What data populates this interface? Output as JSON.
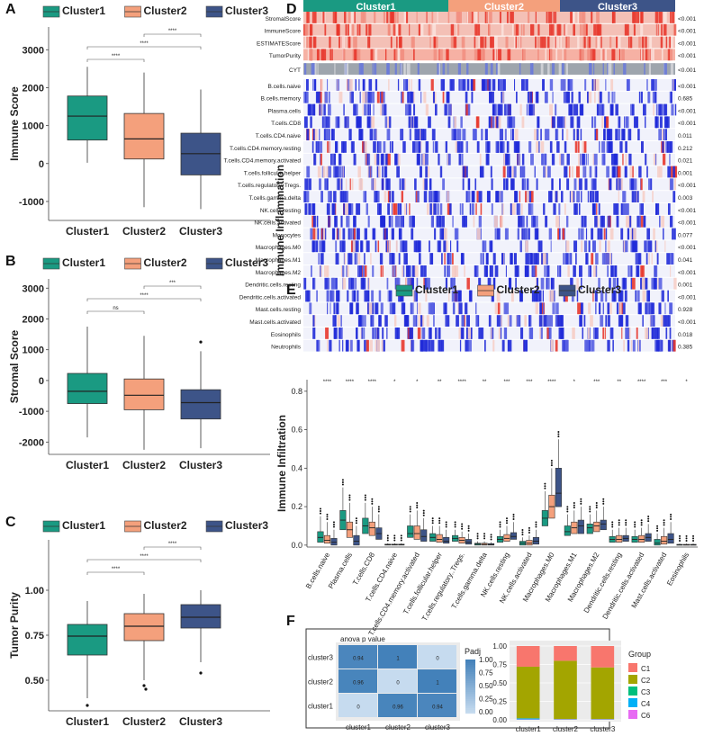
{
  "colors": {
    "c1": "#1a9a82",
    "c2": "#f4a07c",
    "c3": "#3d5488",
    "heatHigh": "#e8382e",
    "heatLow": "#1f2ad8",
    "cyt": "#9ea5ad"
  },
  "panels": {
    "A": "A",
    "B": "B",
    "C": "C",
    "D": "D",
    "E": "E",
    "F": "F"
  },
  "chart_data": [
    {
      "id": "A",
      "type": "box",
      "ylabel": "Immune Score",
      "ylim": [
        -1500,
        3600
      ],
      "yticks": [
        -1000,
        0,
        1000,
        2000,
        3000
      ],
      "legend": [
        "Cluster1",
        "Cluster2",
        "Cluster3"
      ],
      "categories": [
        "Cluster1",
        "Cluster2",
        "Cluster3"
      ],
      "boxes": [
        {
          "q1": 620,
          "med": 1250,
          "q3": 1780,
          "lo": 20,
          "hi": 2550,
          "out": []
        },
        {
          "q1": 120,
          "med": 650,
          "q3": 1320,
          "lo": -1150,
          "hi": 2400,
          "out": []
        },
        {
          "q1": -300,
          "med": 260,
          "q3": 800,
          "lo": -1200,
          "hi": 1950,
          "out": []
        }
      ],
      "comparisons": [
        {
          "from": 1,
          "to": 2,
          "label": "****"
        },
        {
          "from": 1,
          "to": 3,
          "label": "****"
        },
        {
          "from": 2,
          "to": 3,
          "label": "****"
        }
      ]
    },
    {
      "id": "B",
      "type": "box",
      "ylabel": "Stromal Score",
      "ylim": [
        -2400,
        3300
      ],
      "yticks": [
        -2000,
        -1000,
        0,
        1000,
        2000,
        3000
      ],
      "legend": [
        "Cluster1",
        "Cluster2",
        "Cluster3"
      ],
      "categories": [
        "Cluster1",
        "Cluster2",
        "Cluster3"
      ],
      "boxes": [
        {
          "q1": -750,
          "med": -350,
          "q3": 230,
          "lo": -1850,
          "hi": 1750,
          "out": []
        },
        {
          "q1": -950,
          "med": -480,
          "q3": 50,
          "lo": -2250,
          "hi": 1450,
          "out": []
        },
        {
          "q1": -1250,
          "med": -720,
          "q3": -300,
          "lo": -2200,
          "hi": 950,
          "out": [
            1250
          ]
        }
      ],
      "comparisons": [
        {
          "from": 1,
          "to": 2,
          "label": "ns"
        },
        {
          "from": 1,
          "to": 3,
          "label": "****"
        },
        {
          "from": 2,
          "to": 3,
          "label": "***"
        }
      ]
    },
    {
      "id": "C",
      "type": "box",
      "ylabel": "Tumor Purity",
      "ylim": [
        0.33,
        1.28
      ],
      "yticks": [
        0.5,
        0.75,
        1.0
      ],
      "yticklabels": [
        "0.50",
        "0.75",
        "1.00"
      ],
      "legend": [
        "Cluster1",
        "Cluster2",
        "Cluster3"
      ],
      "categories": [
        "Cluster1",
        "Cluster2",
        "Cluster3"
      ],
      "boxes": [
        {
          "q1": 0.64,
          "med": 0.745,
          "q3": 0.81,
          "lo": 0.4,
          "hi": 0.94,
          "out": [
            0.36
          ]
        },
        {
          "q1": 0.72,
          "med": 0.8,
          "q3": 0.87,
          "lo": 0.5,
          "hi": 0.98,
          "out": [
            0.47,
            0.45
          ]
        },
        {
          "q1": 0.79,
          "med": 0.85,
          "q3": 0.92,
          "lo": 0.6,
          "hi": 1.0,
          "out": [
            0.54
          ]
        }
      ],
      "comparisons": [
        {
          "from": 1,
          "to": 2,
          "label": "****"
        },
        {
          "from": 1,
          "to": 3,
          "label": "****"
        },
        {
          "from": 2,
          "to": 3,
          "label": "****"
        }
      ]
    },
    {
      "id": "D",
      "type": "heatmap",
      "ylabel": "Immune Inflammation",
      "clusters": [
        "Cluster1",
        "Cluster2",
        "Cluster3"
      ],
      "rows": [
        "StromalScore",
        "ImmuneScore",
        "ESTIMATEScore",
        "TumorPurity",
        "CYT",
        "B.cells.naive",
        "B.cells.memory",
        "Plasma.cells",
        "T.cells.CD8",
        "T.cells.CD4.naive",
        "T.cells.CD4.memory.resting",
        "T.cells.CD4.memory.activated",
        "T.cells.follicular.helper",
        "T.cells.regulatory..Tregs.",
        "T.cells.gamma.delta",
        "NK.cells.resting",
        "NK.cells.activated",
        "Monocytes",
        "Macrophages.M0",
        "Macrophages.M1",
        "Macrophages.M2",
        "Dendritic.cells.resting",
        "Dendritic.cells.activated",
        "Mast.cells.resting",
        "Mast.cells.activated",
        "Eosinophils",
        "Neutrophils"
      ],
      "pvalues": [
        "<0.001",
        "<0.001",
        "<0.001",
        "<0.001",
        "<0.001",
        "<0.001",
        "0.685",
        "<0.001",
        "<0.001",
        "0.011",
        "0.212",
        "0.021",
        "0.001",
        "<0.001",
        "0.003",
        "<0.001",
        "<0.001",
        "0.077",
        "<0.001",
        "0.041",
        "<0.001",
        "0.001",
        "<0.001",
        "0.928",
        "<0.001",
        "0.018",
        "0.385"
      ]
    },
    {
      "id": "E",
      "type": "box",
      "ylabel": "Immune Infiltration",
      "ylim": [
        -0.01,
        0.86
      ],
      "yticks": [
        0.0,
        0.2,
        0.4,
        0.6,
        0.8
      ],
      "yticklabels": [
        "0.0",
        "0.2",
        "0.4",
        "0.6",
        "0.8"
      ],
      "legend": [
        "Cluster1",
        "Cluster2",
        "Cluster3"
      ],
      "categories": [
        "B.cells.naive",
        "Plasma.cells",
        "T.cells.CD8",
        "T.cells.CD4.naive",
        "T.cells.CD4.memory.activated",
        "T.cells.follicular.helper",
        "T.cells.regulatory..Tregs.",
        "T.cells.gamma.delta",
        "NK.cells.resting",
        "NK.cells.activated",
        "Macrophages.M0",
        "Macrophages.M1",
        "Macrophages.M2",
        "Dendritic.cells.resting",
        "Dendritic.cells.activated",
        "Mast.cells.activated",
        "Eosinophils"
      ],
      "significance": [
        "****",
        "****",
        "****",
        "*",
        "*",
        "**",
        "****",
        "**",
        "***",
        "***",
        "****",
        "*",
        "***",
        "**",
        "****",
        "***",
        "*"
      ],
      "series": [
        {
          "name": "Cluster1",
          "boxes": [
            [
              0.015,
              0.04,
              0.07,
              0,
              0.15
            ],
            [
              0.08,
              0.13,
              0.18,
              0.02,
              0.3
            ],
            [
              0.06,
              0.1,
              0.14,
              0.01,
              0.22
            ],
            [
              0,
              0.002,
              0.005,
              0,
              0.01
            ],
            [
              0.04,
              0.06,
              0.1,
              0,
              0.16
            ],
            [
              0.02,
              0.04,
              0.06,
              0,
              0.1
            ],
            [
              0.02,
              0.035,
              0.05,
              0,
              0.08
            ],
            [
              0,
              0.005,
              0.01,
              0,
              0.02
            ],
            [
              0.015,
              0.03,
              0.045,
              0,
              0.08
            ],
            [
              0,
              0.01,
              0.02,
              0,
              0.04
            ],
            [
              0.1,
              0.14,
              0.18,
              0.03,
              0.28
            ],
            [
              0.05,
              0.07,
              0.1,
              0.02,
              0.16
            ],
            [
              0.06,
              0.09,
              0.11,
              0.03,
              0.16
            ],
            [
              0.015,
              0.03,
              0.045,
              0,
              0.08
            ],
            [
              0.015,
              0.03,
              0.045,
              0,
              0.08
            ],
            [
              0,
              0.01,
              0.03,
              0,
              0.06
            ],
            [
              0,
              0.002,
              0.004,
              0,
              0.008
            ]
          ]
        },
        {
          "name": "Cluster2",
          "boxes": [
            [
              0.01,
              0.025,
              0.05,
              0,
              0.12
            ],
            [
              0.04,
              0.08,
              0.12,
              0,
              0.22
            ],
            [
              0.05,
              0.09,
              0.12,
              0,
              0.2
            ],
            [
              0,
              0.002,
              0.005,
              0,
              0.01
            ],
            [
              0.03,
              0.06,
              0.1,
              0,
              0.18
            ],
            [
              0.015,
              0.03,
              0.055,
              0,
              0.1
            ],
            [
              0.01,
              0.025,
              0.04,
              0,
              0.07
            ],
            [
              0,
              0.004,
              0.01,
              0,
              0.02
            ],
            [
              0.02,
              0.035,
              0.055,
              0,
              0.1
            ],
            [
              0,
              0.01,
              0.025,
              0,
              0.05
            ],
            [
              0.14,
              0.2,
              0.26,
              0.03,
              0.4
            ],
            [
              0.06,
              0.09,
              0.12,
              0.02,
              0.18
            ],
            [
              0.07,
              0.1,
              0.12,
              0.03,
              0.18
            ],
            [
              0.015,
              0.03,
              0.05,
              0,
              0.09
            ],
            [
              0.015,
              0.03,
              0.05,
              0,
              0.09
            ],
            [
              0.005,
              0.02,
              0.045,
              0,
              0.09
            ],
            [
              0,
              0.002,
              0.004,
              0,
              0.008
            ]
          ]
        },
        {
          "name": "Cluster3",
          "boxes": [
            [
              0,
              0.015,
              0.035,
              0,
              0.08
            ],
            [
              0,
              0.02,
              0.05,
              0,
              0.1
            ],
            [
              0.03,
              0.06,
              0.09,
              0,
              0.16
            ],
            [
              0,
              0.002,
              0.005,
              0,
              0.01
            ],
            [
              0.02,
              0.045,
              0.08,
              0,
              0.14
            ],
            [
              0.01,
              0.02,
              0.04,
              0,
              0.08
            ],
            [
              0.005,
              0.015,
              0.03,
              0,
              0.06
            ],
            [
              0,
              0.003,
              0.008,
              0,
              0.015
            ],
            [
              0.03,
              0.045,
              0.065,
              0,
              0.12
            ],
            [
              0.005,
              0.02,
              0.04,
              0,
              0.08
            ],
            [
              0.2,
              0.27,
              0.4,
              0.06,
              0.55
            ],
            [
              0.06,
              0.1,
              0.13,
              0.02,
              0.2
            ],
            [
              0.08,
              0.11,
              0.13,
              0.03,
              0.2
            ],
            [
              0.02,
              0.035,
              0.05,
              0,
              0.09
            ],
            [
              0.02,
              0.04,
              0.06,
              0,
              0.11
            ],
            [
              0.01,
              0.03,
              0.06,
              0,
              0.12
            ],
            [
              0,
              0.002,
              0.004,
              0,
              0.008
            ]
          ]
        }
      ]
    },
    {
      "id": "F1",
      "type": "heatmap",
      "title": "anova p value",
      "legend_title": "Padj",
      "rows": [
        "cluster3",
        "cluster2",
        "cluster1"
      ],
      "cols": [
        "cluster1",
        "cluster2",
        "cluster3"
      ],
      "values": [
        [
          0.94,
          1,
          0
        ],
        [
          0.96,
          0,
          1
        ],
        [
          0,
          0.96,
          0.94
        ]
      ],
      "valueLabels": [
        [
          "0.94",
          "1",
          "0"
        ],
        [
          "0.96",
          "0",
          "1"
        ],
        [
          "0",
          "0.96",
          "0.94"
        ]
      ],
      "colorbar_ticks": [
        "1.00",
        "0.75",
        "0.50",
        "0.25",
        "0.00"
      ]
    },
    {
      "id": "F2",
      "type": "bar",
      "stacked": true,
      "categories": [
        "cluster1",
        "cluster2",
        "cluster3"
      ],
      "yticklabels": [
        "1.00",
        "0.75",
        "0.50",
        "0.25",
        "0.00"
      ],
      "legend_title": "Group",
      "series": [
        {
          "name": "C1",
          "color": "#f8766d",
          "values": [
            0.28,
            0.2,
            0.29
          ]
        },
        {
          "name": "C2",
          "color": "#a3a500",
          "values": [
            0.7,
            0.79,
            0.7
          ]
        },
        {
          "name": "C3",
          "color": "#00bf7d",
          "values": [
            0.0,
            0.0,
            0.0
          ]
        },
        {
          "name": "C4",
          "color": "#00b0f6",
          "values": [
            0.015,
            0.005,
            0.005
          ]
        },
        {
          "name": "C6",
          "color": "#e76bf3",
          "values": [
            0.005,
            0.005,
            0.005
          ]
        }
      ]
    }
  ]
}
